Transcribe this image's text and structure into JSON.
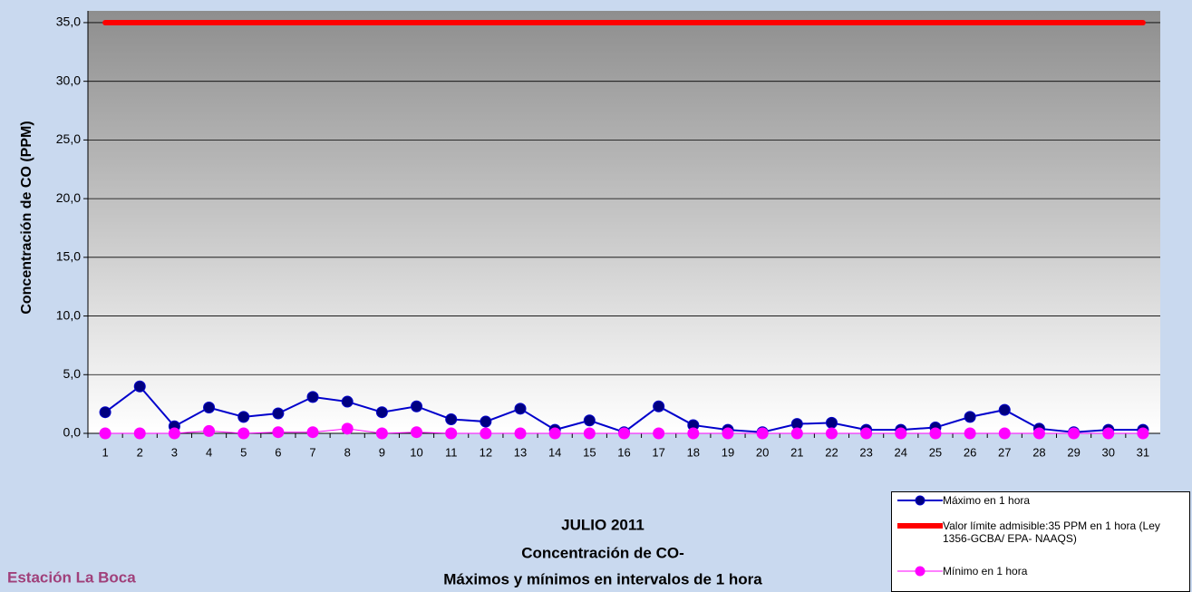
{
  "chart_data": {
    "type": "line",
    "title_lines": [
      "JULIO 2011",
      "Concentración de CO-",
      "Máximos y mínimos en intervalos de 1 hora"
    ],
    "annotation": "Estación La Boca",
    "y_label": "Concentración de CO (PPM)",
    "categories": [
      "1",
      "2",
      "3",
      "4",
      "5",
      "6",
      "7",
      "8",
      "9",
      "10",
      "11",
      "12",
      "13",
      "14",
      "15",
      "16",
      "17",
      "18",
      "19",
      "20",
      "21",
      "22",
      "23",
      "24",
      "25",
      "26",
      "27",
      "28",
      "29",
      "30",
      "31"
    ],
    "series": [
      {
        "name": "Máximo en 1 hora",
        "color": "#0000cc",
        "marker_color": "#000080",
        "width": 2,
        "markers": true,
        "values": [
          1.8,
          4.0,
          0.6,
          2.2,
          1.4,
          1.7,
          3.1,
          2.7,
          1.8,
          2.3,
          1.2,
          1.0,
          2.1,
          0.3,
          1.1,
          0.1,
          2.3,
          0.7,
          0.3,
          0.1,
          0.8,
          0.9,
          0.3,
          0.3,
          0.5,
          1.4,
          2.0,
          0.4,
          0.1,
          0.3,
          0.3
        ]
      },
      {
        "name": "Valor límite admisible:35 PPM en 1 hora (Ley 1356-GCBA/ EPA- NAAQS)",
        "color": "#ff0000",
        "marker_color": "#ff0000",
        "width": 6,
        "markers": false,
        "values": [
          35,
          35,
          35,
          35,
          35,
          35,
          35,
          35,
          35,
          35,
          35,
          35,
          35,
          35,
          35,
          35,
          35,
          35,
          35,
          35,
          35,
          35,
          35,
          35,
          35,
          35,
          35,
          35,
          35,
          35,
          35
        ]
      },
      {
        "name": "Mínimo en 1 hora",
        "color": "#ff00ff",
        "marker_color": "#ff00ff",
        "width": 1,
        "markers": true,
        "values": [
          0,
          0,
          0,
          0.2,
          0,
          0.1,
          0.1,
          0.4,
          0,
          0.1,
          0,
          0,
          0,
          0,
          0,
          0,
          0,
          0,
          0,
          0,
          0,
          0,
          0,
          0,
          0,
          0,
          0,
          0,
          0,
          0,
          0
        ]
      }
    ],
    "ylim": [
      0,
      36
    ],
    "yticks": [
      {
        "value": 0,
        "label": "0,0"
      },
      {
        "value": 5,
        "label": "5,0"
      },
      {
        "value": 10,
        "label": "10,0"
      },
      {
        "value": 15,
        "label": "15,0"
      },
      {
        "value": 20,
        "label": "20,0"
      },
      {
        "value": 25,
        "label": "25,0"
      },
      {
        "value": 30,
        "label": "30,0"
      },
      {
        "value": 35,
        "label": "35,0"
      }
    ],
    "grid": true
  }
}
